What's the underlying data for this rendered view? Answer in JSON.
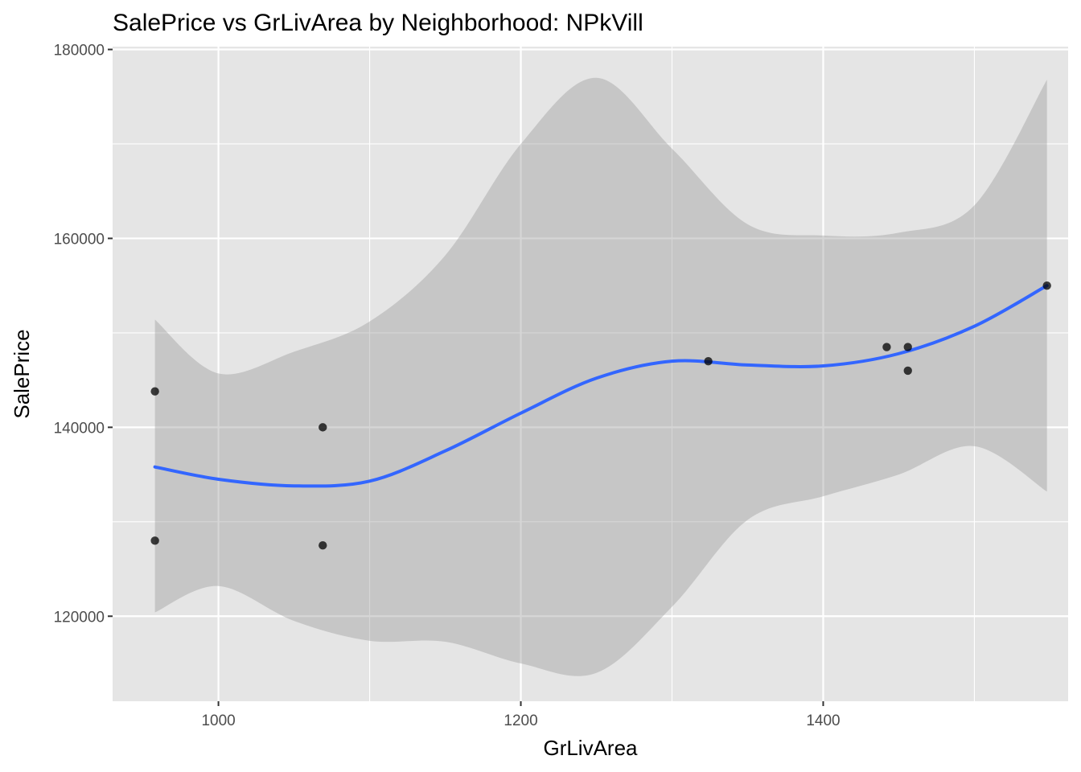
{
  "chart_data": {
    "type": "scatter",
    "title": "SalePrice vs GrLivArea by Neighborhood: NPkVill",
    "xlabel": "GrLivArea",
    "ylabel": "SalePrice",
    "xlim": [
      930,
      1562
    ],
    "ylim": [
      111000,
      180300
    ],
    "x_ticks": [
      1000,
      1200,
      1400
    ],
    "x_tick_labels": [
      "1000",
      "1200",
      "1400"
    ],
    "y_ticks": [
      120000,
      140000,
      160000,
      180000
    ],
    "y_tick_labels": [
      "120000",
      "140000",
      "160000",
      "180000"
    ],
    "grid": true,
    "legend": "none",
    "points": [
      {
        "x": 958,
        "y": 143800
      },
      {
        "x": 958,
        "y": 128000
      },
      {
        "x": 1069,
        "y": 140000
      },
      {
        "x": 1069,
        "y": 127500
      },
      {
        "x": 1324,
        "y": 147000
      },
      {
        "x": 1442,
        "y": 148500
      },
      {
        "x": 1456,
        "y": 148500
      },
      {
        "x": 1456,
        "y": 146000
      },
      {
        "x": 1548,
        "y": 155000
      }
    ],
    "smooth": {
      "method": "loess",
      "color": "#3366FF",
      "x": [
        958,
        1000,
        1050,
        1100,
        1150,
        1200,
        1250,
        1300,
        1350,
        1400,
        1450,
        1500,
        1548
      ],
      "y": [
        135800,
        134500,
        133800,
        134300,
        137500,
        141500,
        145200,
        147000,
        146600,
        146500,
        147800,
        150700,
        155000
      ],
      "upper": [
        151400,
        145700,
        148000,
        151200,
        158200,
        170000,
        177000,
        169500,
        161500,
        160300,
        160600,
        163500,
        176800
      ],
      "lower": [
        120400,
        123200,
        119500,
        117400,
        117300,
        115000,
        114000,
        121000,
        130200,
        132700,
        135000,
        138000,
        133200
      ]
    },
    "colors": {
      "panel": "#E5E5E5",
      "grid": "#FFFFFF",
      "point": "#000000",
      "ribbon": "#999999",
      "line": "#3366FF"
    }
  }
}
